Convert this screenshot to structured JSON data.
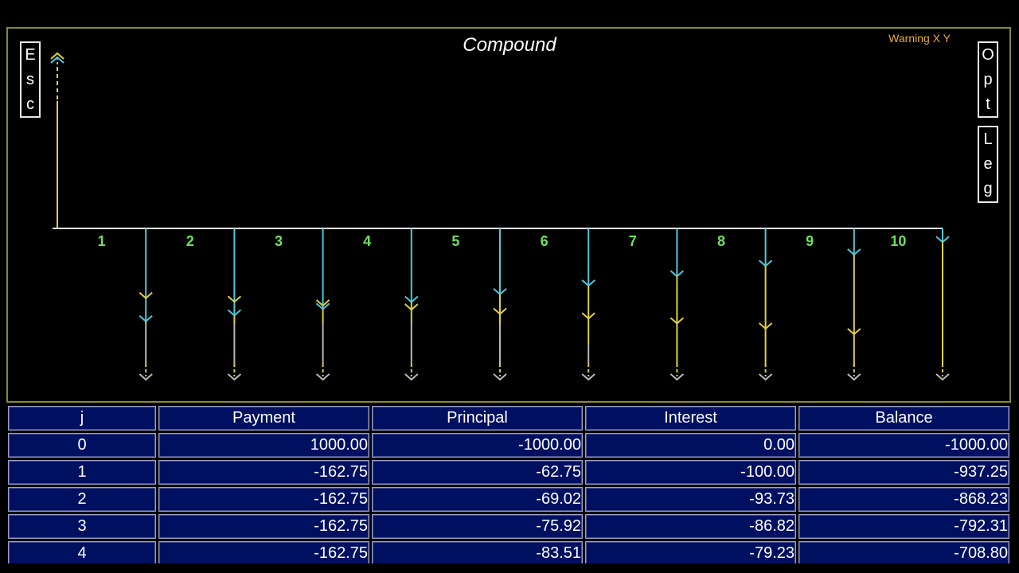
{
  "chart": {
    "title": "Compound",
    "warning": "Warning X Y",
    "esc_letters": [
      "E",
      "s",
      "c"
    ],
    "opt_letters": [
      "O",
      "p",
      "t"
    ],
    "leg_letters": [
      "L",
      "e",
      "g"
    ],
    "period_labels": [
      "1",
      "2",
      "3",
      "4",
      "5",
      "6",
      "7",
      "8",
      "9",
      "10"
    ]
  },
  "chart_data": {
    "type": "cash-flow-diagram",
    "periods": [
      0,
      1,
      2,
      3,
      4,
      5,
      6,
      7,
      8,
      9,
      10
    ],
    "initial_inflow": 1000.0,
    "payment": -162.75,
    "principal": [
      -62.75,
      -69.02,
      -75.92,
      -83.51,
      -91.86,
      -101.05,
      -111.15,
      -122.27,
      -134.49,
      -147.94
    ],
    "interest": [
      -100.0,
      -93.73,
      -86.82,
      -79.23,
      -70.89,
      -61.7,
      -51.6,
      -40.48,
      -28.26,
      -14.8
    ],
    "colors": {
      "payment": "#b8b8b8",
      "principal": "#e0d040",
      "interest": "#4ec8d8",
      "axis": "#e8e8e8",
      "labels": "#6fe05a",
      "frame": "#8a8a2a"
    }
  },
  "table": {
    "headers": [
      "j",
      "Payment",
      "Principal",
      "Interest",
      "Balance"
    ],
    "rows": [
      [
        "0",
        "1000.00",
        "-1000.00",
        "0.00",
        "-1000.00"
      ],
      [
        "1",
        "-162.75",
        "-62.75",
        "-100.00",
        "-937.25"
      ],
      [
        "2",
        "-162.75",
        "-69.02",
        "-93.73",
        "-868.23"
      ],
      [
        "3",
        "-162.75",
        "-75.92",
        "-86.82",
        "-792.31"
      ],
      [
        "4",
        "-162.75",
        "-83.51",
        "-79.23",
        "-708.80"
      ]
    ]
  }
}
